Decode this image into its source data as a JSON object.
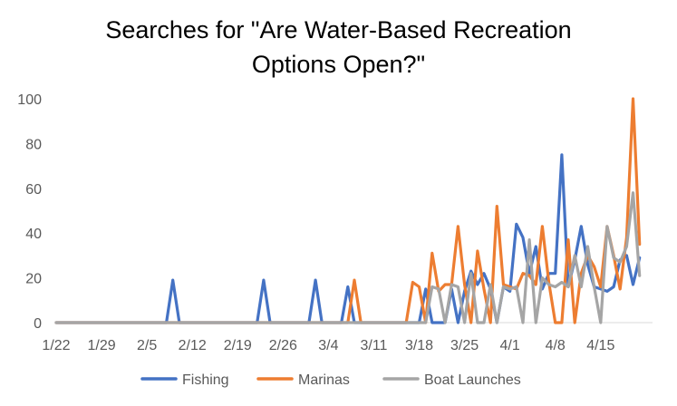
{
  "chart_data": {
    "type": "line",
    "title_line1": "Searches for \"Are Water-Based Recreation",
    "title_line2": "Options Open?\"",
    "xlabel": "",
    "ylabel": "",
    "ylim": [
      0,
      100
    ],
    "yticks": [
      0,
      20,
      40,
      60,
      80,
      100
    ],
    "x_start_day": 0,
    "x_end_day": 92,
    "xticks": [
      {
        "day": 0,
        "label": "1/22"
      },
      {
        "day": 7,
        "label": "1/29"
      },
      {
        "day": 14,
        "label": "2/5"
      },
      {
        "day": 21,
        "label": "2/12"
      },
      {
        "day": 28,
        "label": "2/19"
      },
      {
        "day": 35,
        "label": "2/26"
      },
      {
        "day": 42,
        "label": "3/4"
      },
      {
        "day": 49,
        "label": "3/11"
      },
      {
        "day": 56,
        "label": "3/18"
      },
      {
        "day": 63,
        "label": "3/25"
      },
      {
        "day": 70,
        "label": "4/1"
      },
      {
        "day": 77,
        "label": "4/8"
      },
      {
        "day": 84,
        "label": "4/15"
      }
    ],
    "series": [
      {
        "name": "Fishing",
        "color": "#4472C4",
        "points": [
          [
            0,
            0
          ],
          [
            17,
            0
          ],
          [
            18,
            19
          ],
          [
            19,
            0
          ],
          [
            31,
            0
          ],
          [
            32,
            19
          ],
          [
            33,
            0
          ],
          [
            39,
            0
          ],
          [
            40,
            19
          ],
          [
            41,
            0
          ],
          [
            44,
            0
          ],
          [
            45,
            16
          ],
          [
            46,
            0
          ],
          [
            56,
            0
          ],
          [
            57,
            15
          ],
          [
            58,
            0
          ],
          [
            60,
            0
          ],
          [
            61,
            15
          ],
          [
            62,
            0
          ],
          [
            63,
            14
          ],
          [
            64,
            23
          ],
          [
            65,
            17
          ],
          [
            66,
            22
          ],
          [
            67,
            15
          ],
          [
            68,
            0
          ],
          [
            69,
            16
          ],
          [
            70,
            14
          ],
          [
            71,
            44
          ],
          [
            72,
            38
          ],
          [
            73,
            22
          ],
          [
            74,
            34
          ],
          [
            75,
            15
          ],
          [
            76,
            22
          ],
          [
            77,
            22
          ],
          [
            78,
            75
          ],
          [
            79,
            16
          ],
          [
            80,
            28
          ],
          [
            81,
            43
          ],
          [
            82,
            26
          ],
          [
            83,
            16
          ],
          [
            84,
            15
          ],
          [
            85,
            14
          ],
          [
            86,
            16
          ],
          [
            87,
            28
          ],
          [
            88,
            30
          ],
          [
            89,
            17
          ],
          [
            90,
            29
          ]
        ]
      },
      {
        "name": "Marinas",
        "color": "#ED7D31",
        "points": [
          [
            0,
            0
          ],
          [
            45,
            0
          ],
          [
            46,
            19
          ],
          [
            47,
            0
          ],
          [
            54,
            0
          ],
          [
            55,
            18
          ],
          [
            56,
            16
          ],
          [
            57,
            0
          ],
          [
            58,
            31
          ],
          [
            59,
            14
          ],
          [
            60,
            17
          ],
          [
            61,
            17
          ],
          [
            62,
            43
          ],
          [
            63,
            17
          ],
          [
            64,
            0
          ],
          [
            65,
            32
          ],
          [
            66,
            15
          ],
          [
            67,
            0
          ],
          [
            68,
            52
          ],
          [
            69,
            17
          ],
          [
            70,
            16
          ],
          [
            71,
            15
          ],
          [
            72,
            22
          ],
          [
            73,
            21
          ],
          [
            74,
            17
          ],
          [
            75,
            43
          ],
          [
            76,
            18
          ],
          [
            77,
            0
          ],
          [
            78,
            0
          ],
          [
            79,
            37
          ],
          [
            80,
            0
          ],
          [
            81,
            22
          ],
          [
            82,
            30
          ],
          [
            83,
            25
          ],
          [
            84,
            16
          ],
          [
            85,
            43
          ],
          [
            86,
            30
          ],
          [
            87,
            15
          ],
          [
            88,
            38
          ],
          [
            89,
            100
          ],
          [
            90,
            35
          ]
        ]
      },
      {
        "name": "Boat Launches",
        "color": "#A5A5A5",
        "points": [
          [
            0,
            0
          ],
          [
            57,
            0
          ],
          [
            58,
            16
          ],
          [
            59,
            15
          ],
          [
            60,
            0
          ],
          [
            61,
            17
          ],
          [
            62,
            16
          ],
          [
            63,
            0
          ],
          [
            64,
            22
          ],
          [
            65,
            0
          ],
          [
            66,
            0
          ],
          [
            67,
            17
          ],
          [
            68,
            0
          ],
          [
            69,
            16
          ],
          [
            70,
            15
          ],
          [
            71,
            16
          ],
          [
            72,
            0
          ],
          [
            73,
            37
          ],
          [
            74,
            0
          ],
          [
            75,
            20
          ],
          [
            76,
            17
          ],
          [
            77,
            16
          ],
          [
            78,
            18
          ],
          [
            79,
            16
          ],
          [
            80,
            30
          ],
          [
            81,
            16
          ],
          [
            82,
            34
          ],
          [
            83,
            16
          ],
          [
            84,
            0
          ],
          [
            85,
            43
          ],
          [
            86,
            29
          ],
          [
            87,
            27
          ],
          [
            88,
            34
          ],
          [
            89,
            58
          ],
          [
            90,
            21
          ]
        ]
      }
    ],
    "legend_position": "bottom"
  }
}
